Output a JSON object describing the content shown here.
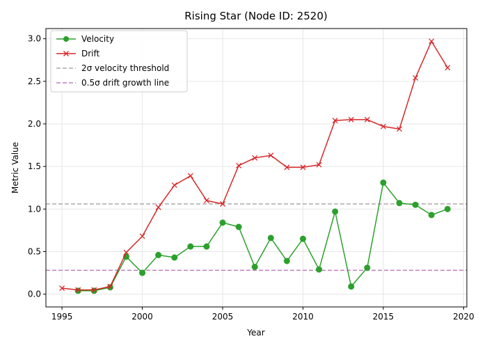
{
  "chart_data": {
    "type": "line",
    "title": "Rising Star (Node ID: 2520)",
    "xlabel": "Year",
    "ylabel": "Metric Value",
    "xlim": [
      1994,
      2020.2
    ],
    "ylim": [
      -0.15,
      3.12
    ],
    "xticks": [
      1995,
      2000,
      2005,
      2010,
      2015,
      2020
    ],
    "yticks": [
      0.0,
      0.5,
      1.0,
      1.5,
      2.0,
      2.5,
      3.0
    ],
    "xtick_labels": [
      "1995",
      "2000",
      "2005",
      "2010",
      "2015",
      "2020"
    ],
    "ytick_labels": [
      "0.0",
      "0.5",
      "1.0",
      "1.5",
      "2.0",
      "2.5",
      "3.0"
    ],
    "grid": true,
    "legend_position": "top-left",
    "series": [
      {
        "name": "Velocity",
        "color": "#2ca02c",
        "marker": "circle",
        "x": [
          1996,
          1997,
          1998,
          1999,
          2000,
          2001,
          2002,
          2003,
          2004,
          2005,
          2006,
          2007,
          2008,
          2009,
          2010,
          2011,
          2012,
          2013,
          2014,
          2015,
          2016,
          2017,
          2018,
          2019
        ],
        "y": [
          0.04,
          0.04,
          0.08,
          0.44,
          0.25,
          0.46,
          0.43,
          0.56,
          0.56,
          0.84,
          0.79,
          0.32,
          0.66,
          0.39,
          0.65,
          0.29,
          0.97,
          0.09,
          0.31,
          1.31,
          1.07,
          1.05,
          0.93,
          1.0
        ]
      },
      {
        "name": "Drift",
        "color": "#d62728",
        "marker": "x",
        "x": [
          1995,
          1996,
          1997,
          1998,
          1999,
          2000,
          2001,
          2002,
          2003,
          2004,
          2005,
          2006,
          2007,
          2008,
          2009,
          2010,
          2011,
          2012,
          2013,
          2014,
          2015,
          2016,
          2017,
          2018,
          2019
        ],
        "y": [
          0.07,
          0.05,
          0.05,
          0.09,
          0.49,
          0.68,
          1.02,
          1.28,
          1.39,
          1.1,
          1.06,
          1.51,
          1.6,
          1.63,
          1.49,
          1.49,
          1.52,
          2.04,
          2.05,
          2.05,
          1.97,
          1.94,
          2.54,
          2.97,
          2.66
        ]
      }
    ],
    "reference_lines": [
      {
        "name": "2σ velocity threshold",
        "y": 1.06,
        "color": "#aaaaaa",
        "style": "dashed"
      },
      {
        "name": "0.5σ drift growth line",
        "y": 0.28,
        "color": "#bf7fbf",
        "style": "dashed"
      }
    ]
  }
}
